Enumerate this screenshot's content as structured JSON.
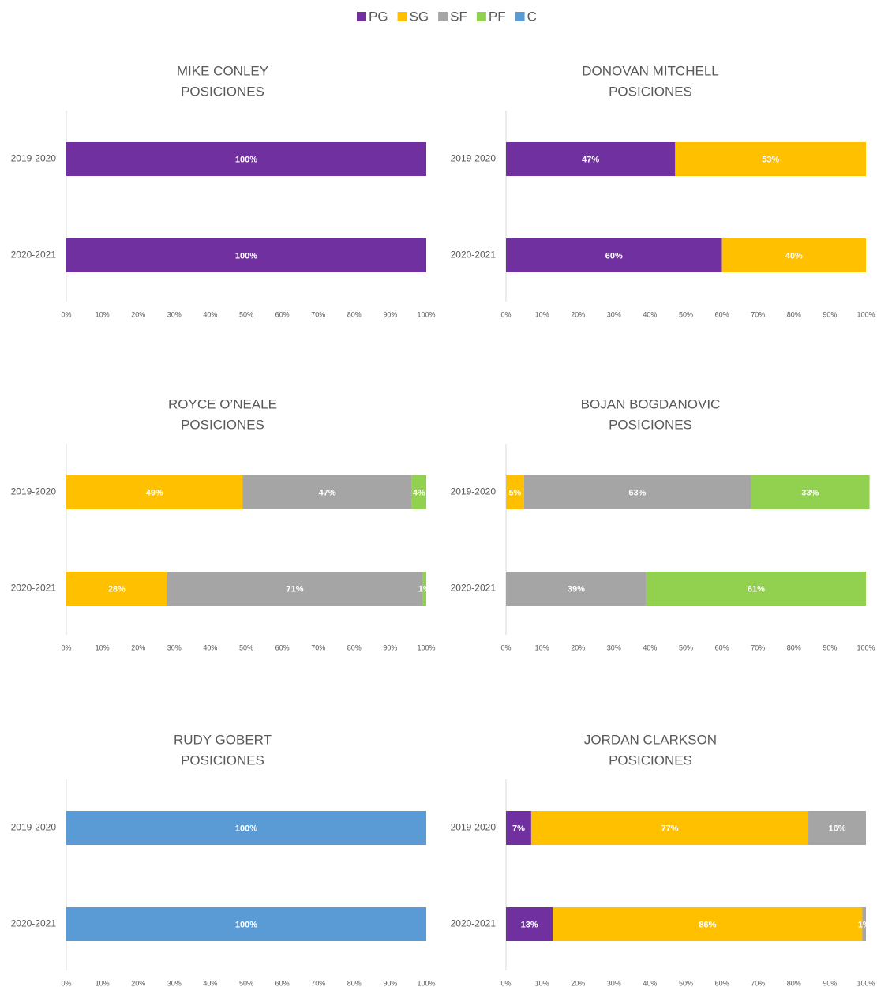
{
  "legend": [
    {
      "name": "PG",
      "color": "#7030a0"
    },
    {
      "name": "SG",
      "color": "#ffc000"
    },
    {
      "name": "SF",
      "color": "#a5a5a5"
    },
    {
      "name": "PF",
      "color": "#92d050"
    },
    {
      "name": "C",
      "color": "#5b9bd5"
    }
  ],
  "chart_data": [
    {
      "type": "stacked_bar_horizontal",
      "title": "MIKE CONLEY",
      "subtitle": "POSICIONES",
      "categories": [
        "2019-2020",
        "2020-2021"
      ],
      "series": [
        {
          "name": "PG",
          "values": [
            100,
            100
          ],
          "value_labels": [
            "100%",
            "100%"
          ]
        }
      ],
      "xlim": [
        0,
        100
      ],
      "xticks": [
        {
          "value": 0,
          "label": "0%"
        },
        {
          "value": 10,
          "label": "10%"
        },
        {
          "value": 20,
          "label": "20%"
        },
        {
          "value": 30,
          "label": "30%"
        },
        {
          "value": 40,
          "label": "40%"
        },
        {
          "value": 50,
          "label": "50%"
        },
        {
          "value": 60,
          "label": "60%"
        },
        {
          "value": 70,
          "label": "70%"
        },
        {
          "value": 80,
          "label": "80%"
        },
        {
          "value": 90,
          "label": "90%"
        },
        {
          "value": 100,
          "label": "100%"
        }
      ]
    },
    {
      "type": "stacked_bar_horizontal",
      "title": "DONOVAN MITCHELL",
      "subtitle": "POSICIONES",
      "categories": [
        "2019-2020",
        "2020-2021"
      ],
      "series": [
        {
          "name": "PG",
          "values": [
            47,
            60
          ],
          "value_labels": [
            "47%",
            "60%"
          ]
        },
        {
          "name": "SG",
          "values": [
            53,
            40
          ],
          "value_labels": [
            "53%",
            "40%"
          ]
        }
      ],
      "xlim": [
        0,
        100
      ],
      "xticks": [
        {
          "value": 0,
          "label": "0%"
        },
        {
          "value": 10,
          "label": "10%"
        },
        {
          "value": 20,
          "label": "20%"
        },
        {
          "value": 30,
          "label": "30%"
        },
        {
          "value": 40,
          "label": "40%"
        },
        {
          "value": 50,
          "label": "50%"
        },
        {
          "value": 60,
          "label": "60%"
        },
        {
          "value": 70,
          "label": "70%"
        },
        {
          "value": 80,
          "label": "80%"
        },
        {
          "value": 90,
          "label": "90%"
        },
        {
          "value": 100,
          "label": "100%"
        }
      ]
    },
    {
      "type": "stacked_bar_horizontal",
      "title": "ROYCE O’NEALE",
      "subtitle": "POSICIONES",
      "categories": [
        "2019-2020",
        "2020-2021"
      ],
      "series": [
        {
          "name": "SG",
          "values": [
            49,
            28
          ],
          "value_labels": [
            "49%",
            "28%"
          ]
        },
        {
          "name": "SF",
          "values": [
            47,
            71
          ],
          "value_labels": [
            "47%",
            "71%"
          ]
        },
        {
          "name": "PF",
          "values": [
            4,
            1
          ],
          "value_labels": [
            "4%",
            "1%"
          ]
        }
      ],
      "xlim": [
        0,
        100
      ],
      "xticks": [
        {
          "value": 0,
          "label": "0%"
        },
        {
          "value": 10,
          "label": "10%"
        },
        {
          "value": 20,
          "label": "20%"
        },
        {
          "value": 30,
          "label": "30%"
        },
        {
          "value": 40,
          "label": "40%"
        },
        {
          "value": 50,
          "label": "50%"
        },
        {
          "value": 60,
          "label": "60%"
        },
        {
          "value": 70,
          "label": "70%"
        },
        {
          "value": 80,
          "label": "80%"
        },
        {
          "value": 90,
          "label": "90%"
        },
        {
          "value": 100,
          "label": "100%"
        }
      ]
    },
    {
      "type": "stacked_bar_horizontal",
      "title": "BOJAN BOGDANOVIC",
      "subtitle": "POSICIONES",
      "categories": [
        "2019-2020",
        "2020-2021"
      ],
      "series": [
        {
          "name": "SG",
          "values": [
            5,
            null
          ],
          "value_labels": [
            "5%",
            null
          ]
        },
        {
          "name": "SF",
          "values": [
            63,
            39
          ],
          "value_labels": [
            "63%",
            "39%"
          ]
        },
        {
          "name": "PF",
          "values": [
            33,
            61
          ],
          "value_labels": [
            "33%",
            "61%"
          ]
        }
      ],
      "xlim": [
        0,
        100
      ],
      "xticks": [
        {
          "value": 0,
          "label": "0%"
        },
        {
          "value": 10,
          "label": "10%"
        },
        {
          "value": 20,
          "label": "20%"
        },
        {
          "value": 30,
          "label": "30%"
        },
        {
          "value": 40,
          "label": "40%"
        },
        {
          "value": 50,
          "label": "50%"
        },
        {
          "value": 60,
          "label": "60%"
        },
        {
          "value": 70,
          "label": "70%"
        },
        {
          "value": 80,
          "label": "80%"
        },
        {
          "value": 90,
          "label": "90%"
        },
        {
          "value": 100,
          "label": "100%"
        }
      ]
    },
    {
      "type": "stacked_bar_horizontal",
      "title": "RUDY GOBERT",
      "subtitle": "POSICIONES",
      "categories": [
        "2019-2020",
        "2020-2021"
      ],
      "series": [
        {
          "name": "C",
          "values": [
            100,
            100
          ],
          "value_labels": [
            "100%",
            "100%"
          ]
        }
      ],
      "xlim": [
        0,
        100
      ],
      "xticks": [
        {
          "value": 0,
          "label": "0%"
        },
        {
          "value": 10,
          "label": "10%"
        },
        {
          "value": 20,
          "label": "20%"
        },
        {
          "value": 30,
          "label": "30%"
        },
        {
          "value": 40,
          "label": "40%"
        },
        {
          "value": 50,
          "label": "50%"
        },
        {
          "value": 60,
          "label": "60%"
        },
        {
          "value": 70,
          "label": "70%"
        },
        {
          "value": 80,
          "label": "80%"
        },
        {
          "value": 90,
          "label": "90%"
        },
        {
          "value": 100,
          "label": "100%"
        }
      ]
    },
    {
      "type": "stacked_bar_horizontal",
      "title": "JORDAN CLARKSON",
      "subtitle": "POSICIONES",
      "categories": [
        "2019-2020",
        "2020-2021"
      ],
      "series": [
        {
          "name": "PG",
          "values": [
            7,
            13
          ],
          "value_labels": [
            "7%",
            "13%"
          ]
        },
        {
          "name": "SG",
          "values": [
            77,
            86
          ],
          "value_labels": [
            "77%",
            "86%"
          ]
        },
        {
          "name": "SF",
          "values": [
            16,
            1
          ],
          "value_labels": [
            "16%",
            "1%"
          ]
        }
      ],
      "xlim": [
        0,
        100
      ],
      "xticks": [
        {
          "value": 0,
          "label": "0%"
        },
        {
          "value": 10,
          "label": "10%"
        },
        {
          "value": 20,
          "label": "20%"
        },
        {
          "value": 30,
          "label": "30%"
        },
        {
          "value": 40,
          "label": "40%"
        },
        {
          "value": 50,
          "label": "50%"
        },
        {
          "value": 60,
          "label": "60%"
        },
        {
          "value": 70,
          "label": "70%"
        },
        {
          "value": 80,
          "label": "80%"
        },
        {
          "value": 90,
          "label": "90%"
        },
        {
          "value": 100,
          "label": "100%"
        }
      ]
    }
  ]
}
